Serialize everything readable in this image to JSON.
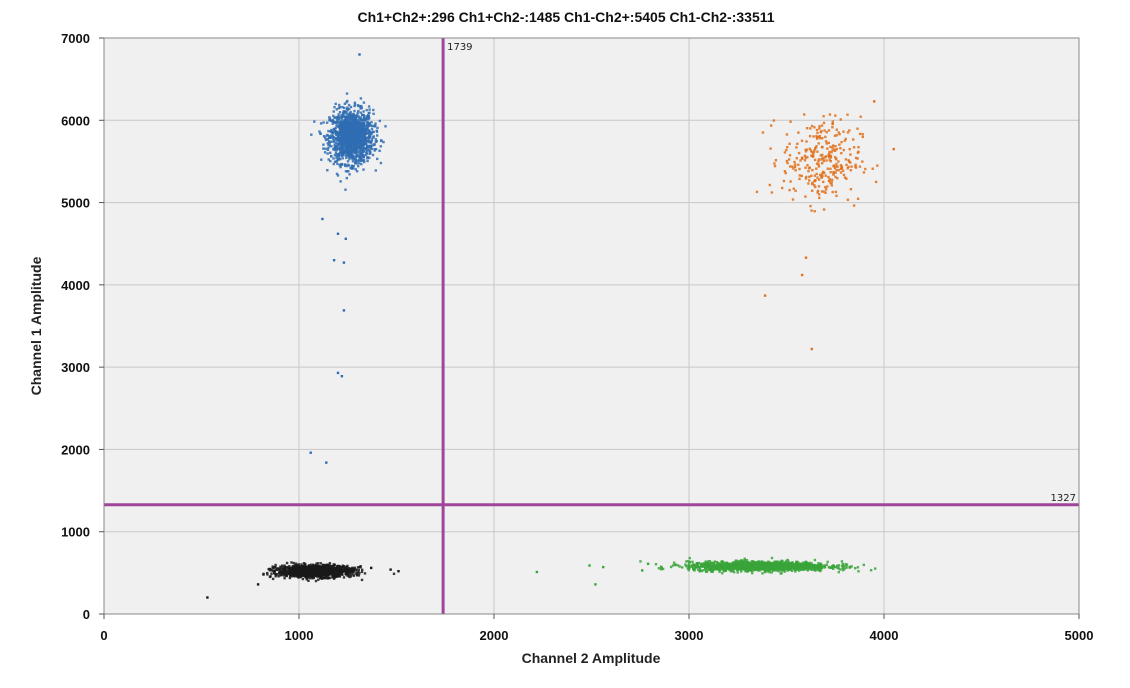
{
  "chart_data": {
    "type": "scatter",
    "title": "Ch1+Ch2+:296  Ch1+Ch2-:1485  Ch1-Ch2+:5405  Ch1-Ch2-:33511",
    "xlabel": "Channel 2 Amplitude",
    "ylabel": "Channel 1 Amplitude",
    "xlim": [
      0,
      5000
    ],
    "ylim": [
      0,
      7000
    ],
    "x_ticks": [
      0,
      1000,
      2000,
      3000,
      4000,
      5000
    ],
    "y_ticks": [
      0,
      1000,
      2000,
      3000,
      4000,
      5000,
      6000,
      7000
    ],
    "grid": true,
    "thresholds": {
      "channel2": {
        "value": 1739,
        "label": "1739",
        "color": "#a0449c"
      },
      "channel1": {
        "value": 1327,
        "label": "1327",
        "color": "#a0449c"
      }
    },
    "clusters": [
      {
        "quadrant": "Ch1+Ch2-",
        "count": 1485,
        "color": "#2f6db3",
        "center": [
          1270,
          5800
        ],
        "spread": [
          55,
          160
        ],
        "outliers": [
          [
            1310,
            6800
          ],
          [
            1120,
            4800
          ],
          [
            1200,
            4620
          ],
          [
            1240,
            4560
          ],
          [
            1180,
            4300
          ],
          [
            1230,
            4270
          ],
          [
            1230,
            3690
          ],
          [
            1200,
            2930
          ],
          [
            1220,
            2890
          ],
          [
            1060,
            1960
          ],
          [
            1140,
            1840
          ]
        ]
      },
      {
        "quadrant": "Ch1+Ch2+",
        "count": 296,
        "color": "#e0701a",
        "center": [
          3680,
          5520
        ],
        "spread": [
          100,
          260
        ],
        "outliers": [
          [
            3950,
            6230
          ],
          [
            4050,
            5650
          ],
          [
            3580,
            4120
          ],
          [
            3390,
            3870
          ],
          [
            3630,
            3220
          ],
          [
            3600,
            4330
          ]
        ]
      },
      {
        "quadrant": "Ch1-Ch2+",
        "count": 5405,
        "color": "#3aa53a",
        "center": [
          3360,
          580
        ],
        "spread": [
          180,
          28
        ],
        "outliers": [
          [
            2220,
            510
          ],
          [
            2490,
            590
          ],
          [
            2520,
            360
          ],
          [
            2560,
            570
          ],
          [
            2760,
            530
          ],
          [
            2790,
            610
          ],
          [
            2860,
            560
          ]
        ]
      },
      {
        "quadrant": "Ch1-Ch2-",
        "count": 33511,
        "color": "#1a1a1a",
        "center": [
          1080,
          520
        ],
        "spread": [
          95,
          35
        ],
        "outliers": [
          [
            530,
            200
          ],
          [
            790,
            360
          ],
          [
            1470,
            540
          ],
          [
            1510,
            520
          ],
          [
            1370,
            560
          ]
        ]
      }
    ]
  }
}
